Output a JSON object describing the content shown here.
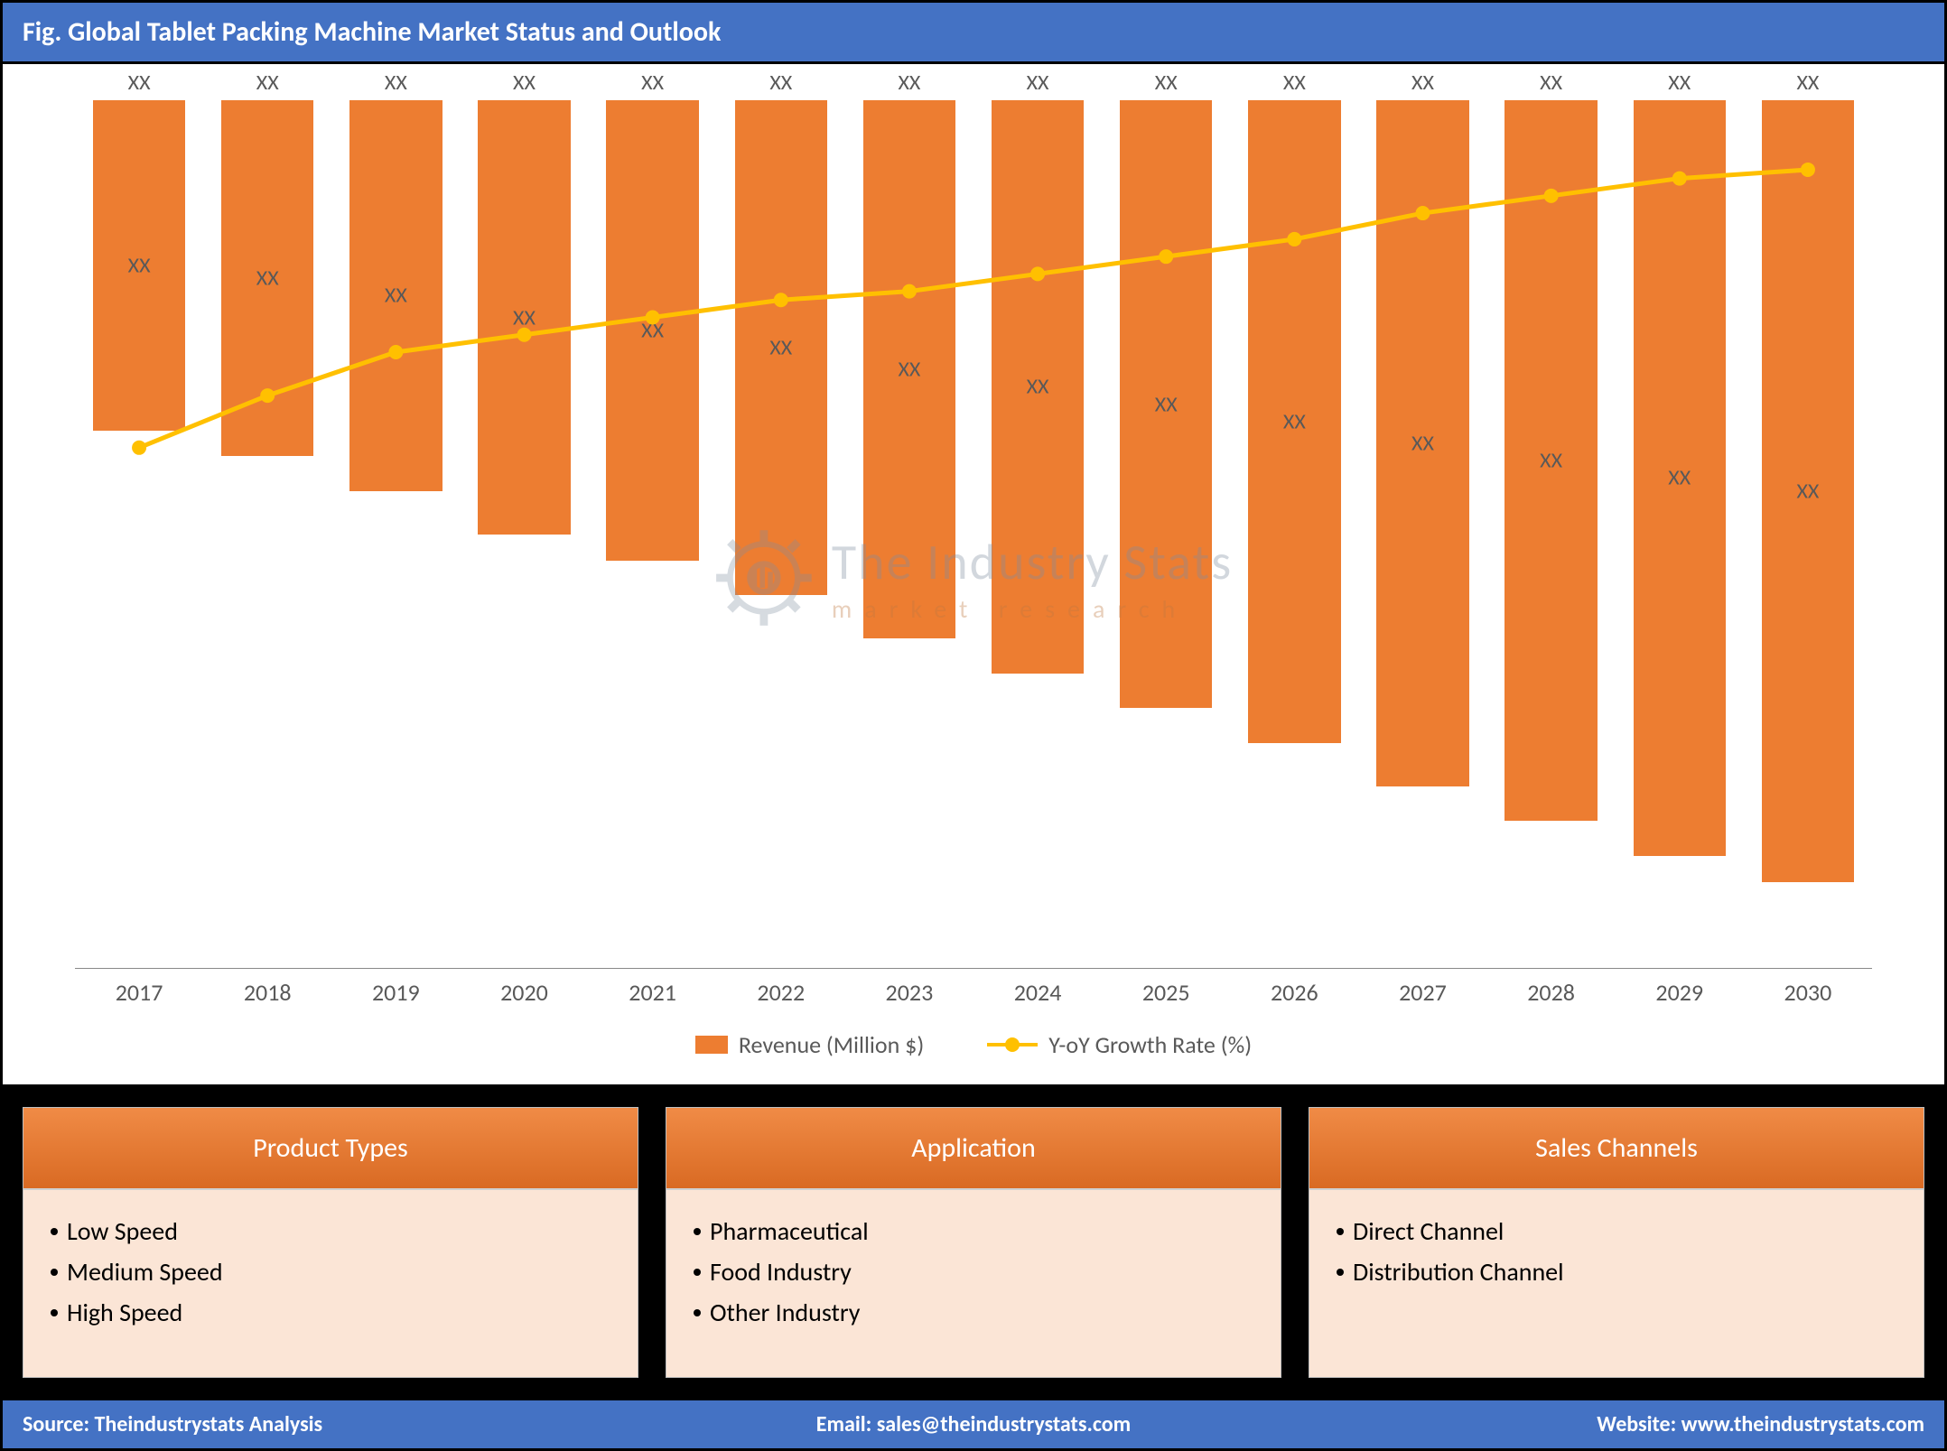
{
  "title": "Fig. Global Tablet Packing Machine Market Status and Outlook",
  "chart": {
    "type": "bar+line",
    "categories": [
      "2017",
      "2018",
      "2019",
      "2020",
      "2021",
      "2022",
      "2023",
      "2024",
      "2025",
      "2026",
      "2027",
      "2028",
      "2029",
      "2030"
    ],
    "bar_values_pct": [
      38,
      41,
      45,
      50,
      53,
      57,
      62,
      66,
      70,
      74,
      79,
      83,
      87,
      90
    ],
    "bar_top_labels": [
      "XX",
      "XX",
      "XX",
      "XX",
      "XX",
      "XX",
      "XX",
      "XX",
      "XX",
      "XX",
      "XX",
      "XX",
      "XX",
      "XX"
    ],
    "bar_mid_labels": [
      "XX",
      "XX",
      "XX",
      "XX",
      "XX",
      "XX",
      "XX",
      "XX",
      "XX",
      "XX",
      "XX",
      "XX",
      "XX",
      "XX"
    ],
    "line_values_pct": [
      60,
      66,
      71,
      73,
      75,
      77,
      78,
      80,
      82,
      84,
      87,
      89,
      91,
      92
    ],
    "bar_color": "#ed7d31",
    "line_color": "#ffc000",
    "marker_radius": 8,
    "line_width": 5,
    "axis_color": "#888888",
    "label_color": "#595959",
    "label_fontsize": 24,
    "xaxis_fontsize": 26,
    "legend_fontsize": 26,
    "legend": {
      "bar": "Revenue (Million $)",
      "line": "Y-oY Growth Rate (%)"
    },
    "watermark": {
      "main": "The Industry Stats",
      "sub": "market  research"
    }
  },
  "cards": [
    {
      "title": "Product Types",
      "items": [
        "Low Speed",
        "Medium Speed",
        "High Speed"
      ]
    },
    {
      "title": "Application",
      "items": [
        "Pharmaceutical",
        "Food Industry",
        "Other Industry"
      ]
    },
    {
      "title": "Sales Channels",
      "items": [
        "Direct Channel",
        "Distribution Channel"
      ]
    }
  ],
  "card_style": {
    "header_bg": "#ed7d31",
    "header_color": "#ffffff",
    "body_bg": "#fbe5d6",
    "header_fontsize": 30,
    "body_fontsize": 28
  },
  "footer": {
    "source_label": "Source: ",
    "source_value": "Theindustrystats Analysis",
    "email_label": "Email: ",
    "email_value": "sales@theindustrystats.com",
    "website_label": "Website: ",
    "website_value": "www.theindustrystats.com"
  },
  "colors": {
    "title_bar_bg": "#4472c4",
    "title_bar_fg": "#ffffff",
    "outer_border": "#000000"
  }
}
